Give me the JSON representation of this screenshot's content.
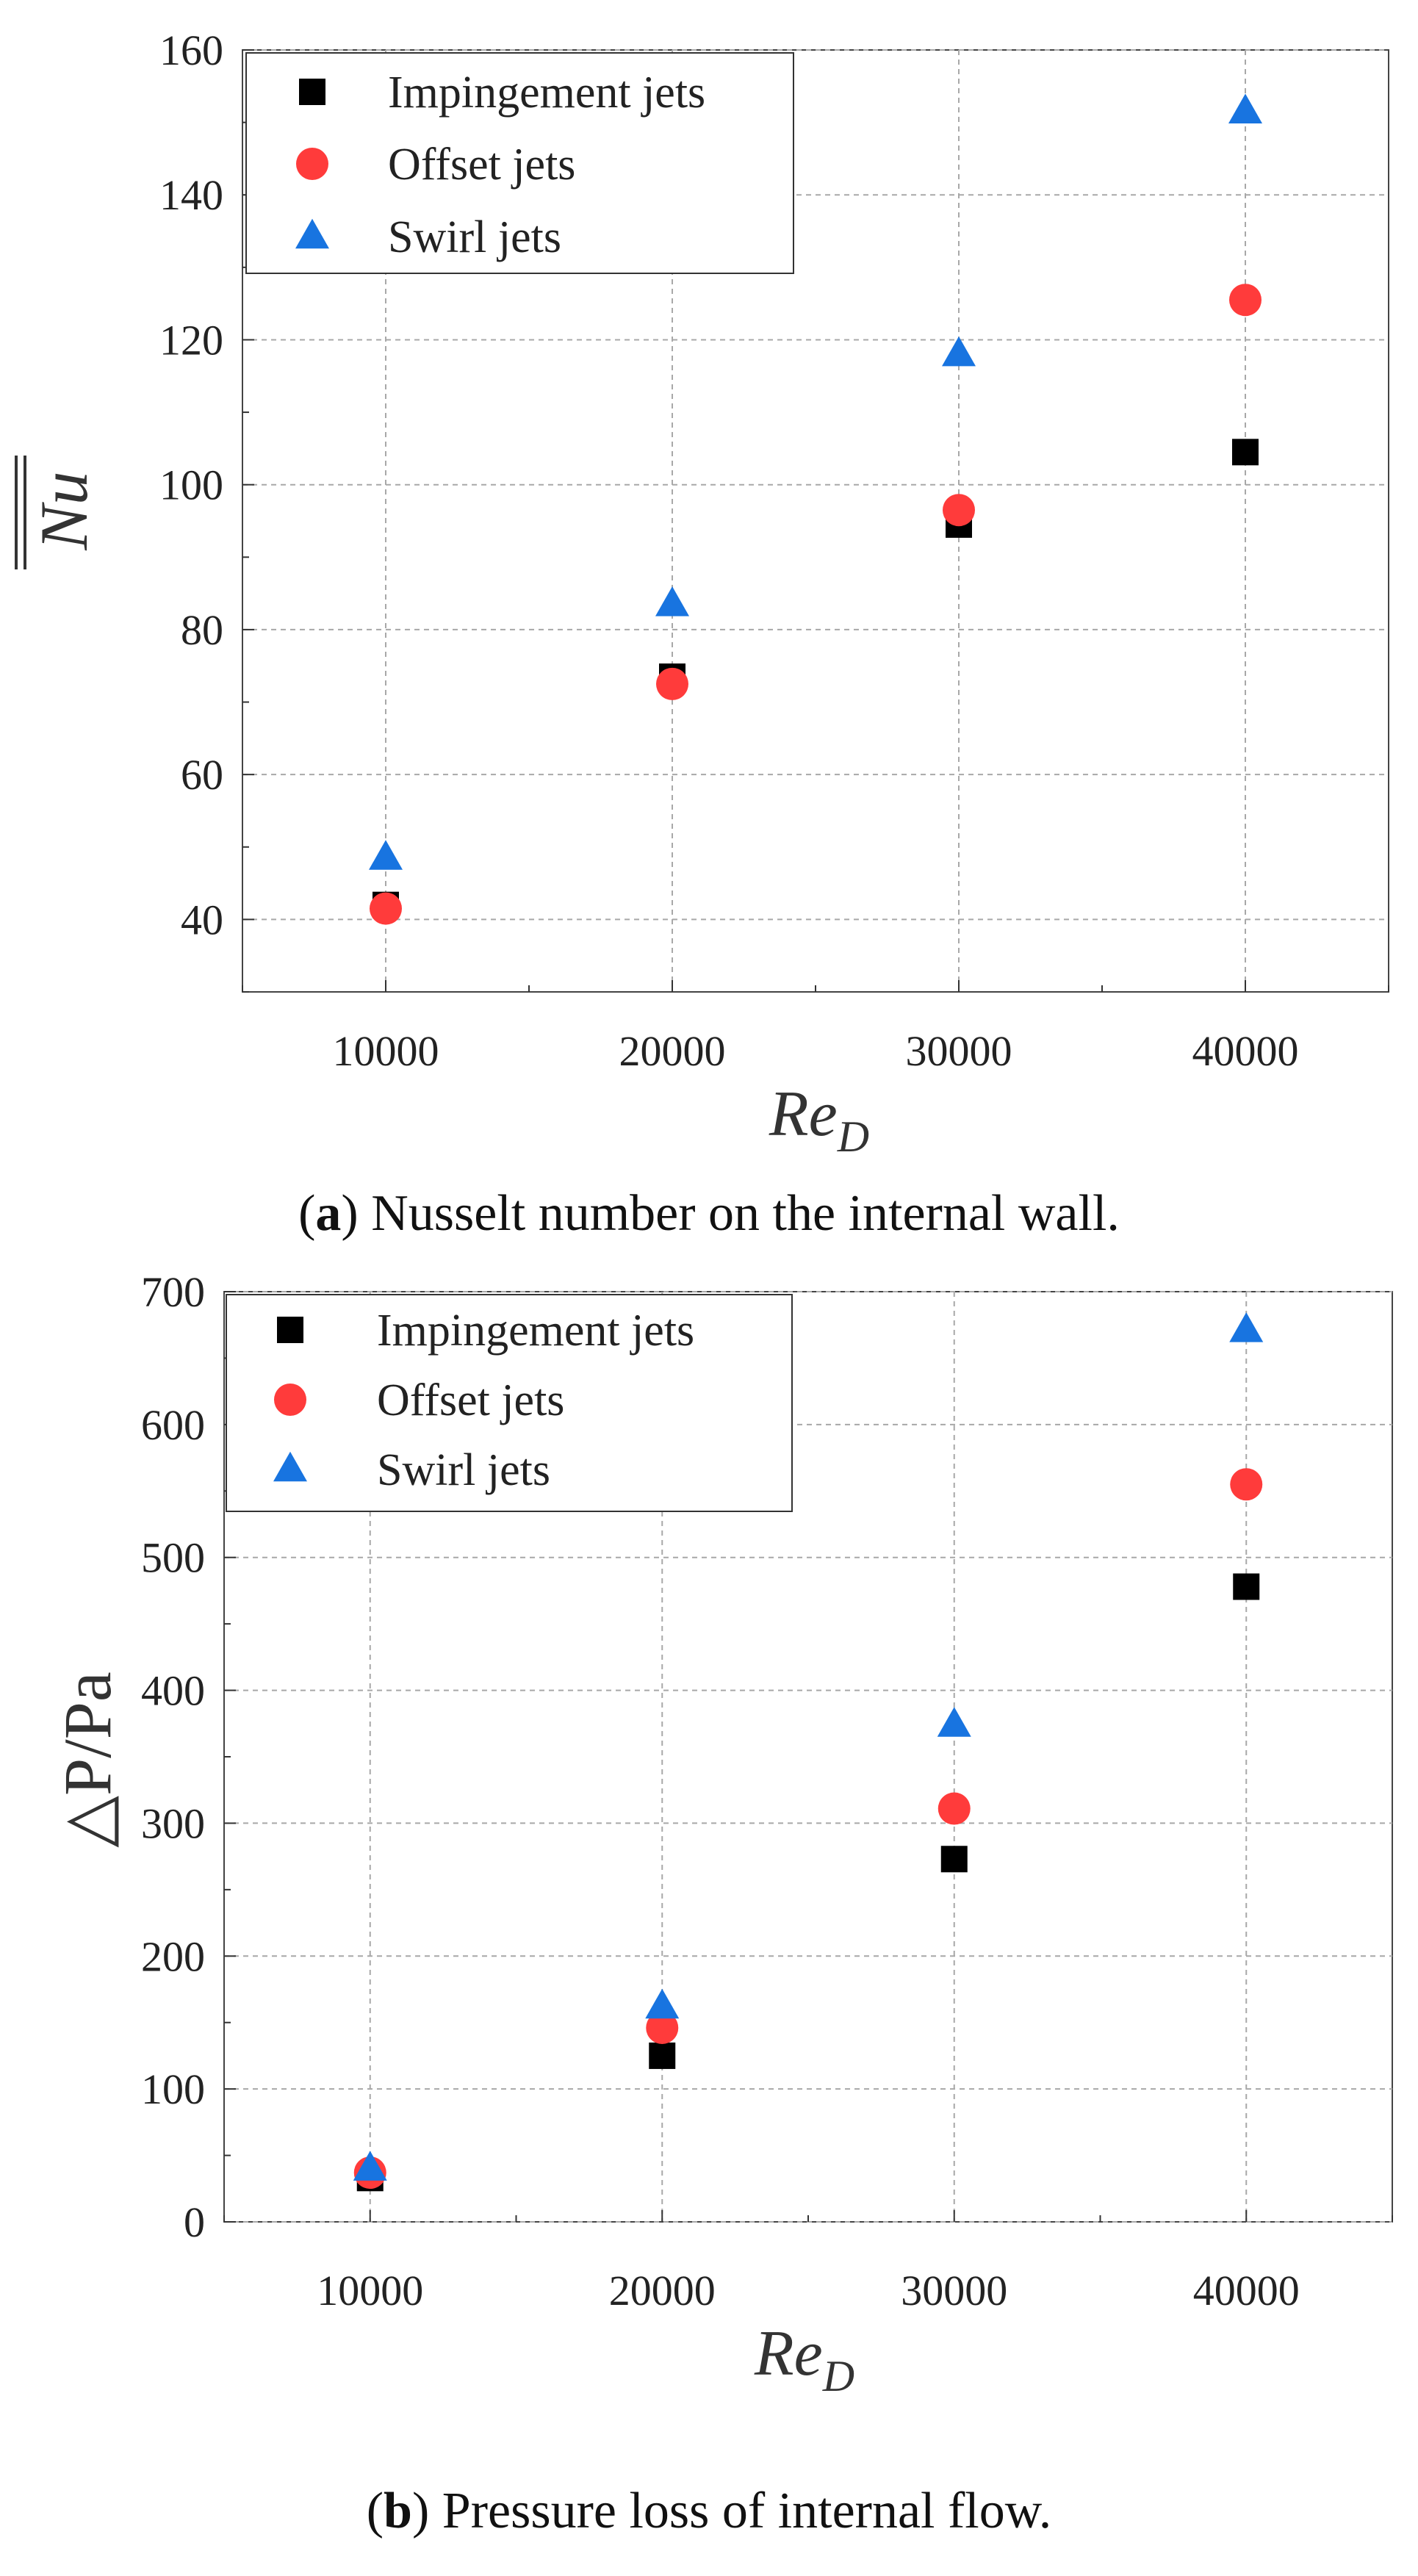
{
  "chart_data": [
    {
      "type": "scatter",
      "title": "",
      "xlabel": "Re",
      "xlabel_sub": "D",
      "ylabel": "Nu",
      "ylabel_overline": "double",
      "xlim": [
        5000,
        45000
      ],
      "ylim": [
        30,
        160
      ],
      "xticks": [
        10000,
        20000,
        30000,
        40000
      ],
      "yticks": [
        40,
        60,
        80,
        100,
        120,
        140,
        160
      ],
      "grid": true,
      "legend_position": "top-left",
      "series": [
        {
          "name": "Impingement jets",
          "marker": "square",
          "color": "#000000",
          "x": [
            10000,
            20000,
            30000,
            40000
          ],
          "y": [
            42,
            73.5,
            94.5,
            104.5
          ]
        },
        {
          "name": "Offset jets",
          "marker": "circle",
          "color": "#ff3b3b",
          "x": [
            10000,
            20000,
            30000,
            40000
          ],
          "y": [
            41.5,
            72.5,
            96.5,
            125.5
          ]
        },
        {
          "name": "Swirl jets",
          "marker": "triangle",
          "color": "#1874e0",
          "x": [
            10000,
            20000,
            30000,
            40000
          ],
          "y": [
            48.5,
            83.5,
            118,
            151.5
          ]
        }
      ],
      "caption": {
        "letter": "a",
        "text": ") Nusselt number on the internal wall."
      }
    },
    {
      "type": "scatter",
      "title": "",
      "xlabel": "Re",
      "xlabel_sub": "D",
      "ylabel": "△P/Pa",
      "xlim": [
        5000,
        45000
      ],
      "ylim": [
        0,
        700
      ],
      "xticks": [
        10000,
        20000,
        30000,
        40000
      ],
      "yticks": [
        0,
        100,
        200,
        300,
        400,
        500,
        600,
        700
      ],
      "grid": true,
      "legend_position": "top-left",
      "series": [
        {
          "name": "Impingement jets",
          "marker": "square",
          "color": "#000000",
          "x": [
            10000,
            20000,
            30000,
            40000
          ],
          "y": [
            33,
            125,
            273,
            478
          ]
        },
        {
          "name": "Offset jets",
          "marker": "circle",
          "color": "#ff3b3b",
          "x": [
            10000,
            20000,
            30000,
            40000
          ],
          "y": [
            37,
            146,
            311,
            555
          ]
        },
        {
          "name": "Swirl jets",
          "marker": "triangle",
          "color": "#1874e0",
          "x": [
            10000,
            20000,
            30000,
            40000
          ],
          "y": [
            40,
            162,
            374,
            671
          ]
        }
      ],
      "caption": {
        "letter": "b",
        "text": ") Pressure loss of internal flow."
      }
    }
  ]
}
